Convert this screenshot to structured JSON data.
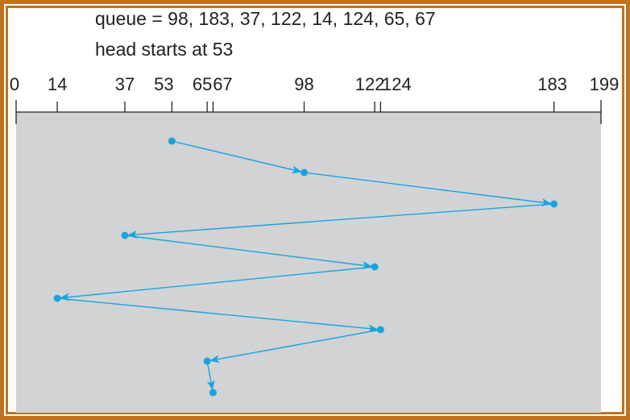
{
  "header": {
    "queue_line": "queue = 98, 183, 37, 122, 14, 124, 65, 67",
    "head_line": "head starts at 53"
  },
  "chart_data": {
    "type": "line",
    "axis_range": [
      0,
      199
    ],
    "tick_labels": [
      "0",
      "14",
      "37",
      "53",
      "65",
      "67",
      "98",
      "122",
      "124",
      "183",
      "199"
    ],
    "ticks": [
      0,
      14,
      37,
      53,
      65,
      67,
      98,
      122,
      124,
      183,
      199
    ],
    "head_start": 53,
    "queue": [
      98,
      183,
      37,
      122,
      14,
      124,
      65,
      67
    ],
    "path": [
      53,
      98,
      183,
      37,
      122,
      14,
      124,
      65,
      67
    ],
    "colors": {
      "path": "#1ba3de",
      "background": "#d1d3d4",
      "frame": "#c0721f",
      "axis": "#222222"
    }
  }
}
